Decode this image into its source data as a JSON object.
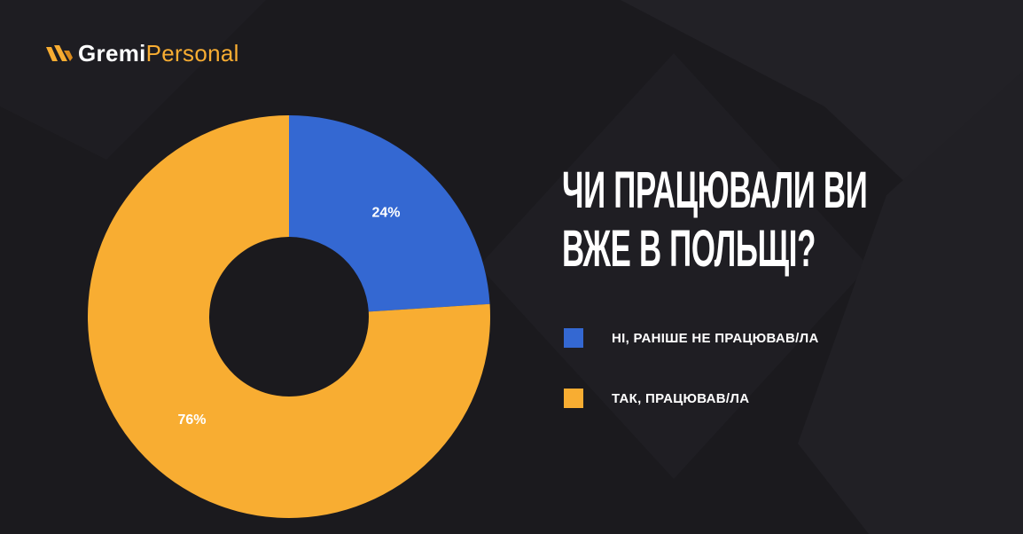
{
  "brand": {
    "name": "Gremi",
    "suffix": "Personal"
  },
  "chart_data": {
    "type": "pie",
    "title": "ЧИ ПРАЦЮВАЛИ ВИ ВЖЕ В ПОЛЬЩІ?",
    "categories": [
      "НІ, РАНІШЕ НЕ ПРАЦЮВАВ/ЛА",
      "ТАК, ПРАЦЮВАВ/ЛА"
    ],
    "values": [
      24,
      76
    ],
    "value_labels": [
      "24%",
      "76%"
    ],
    "colors": [
      "#3468d2",
      "#f8ad32"
    ]
  }
}
